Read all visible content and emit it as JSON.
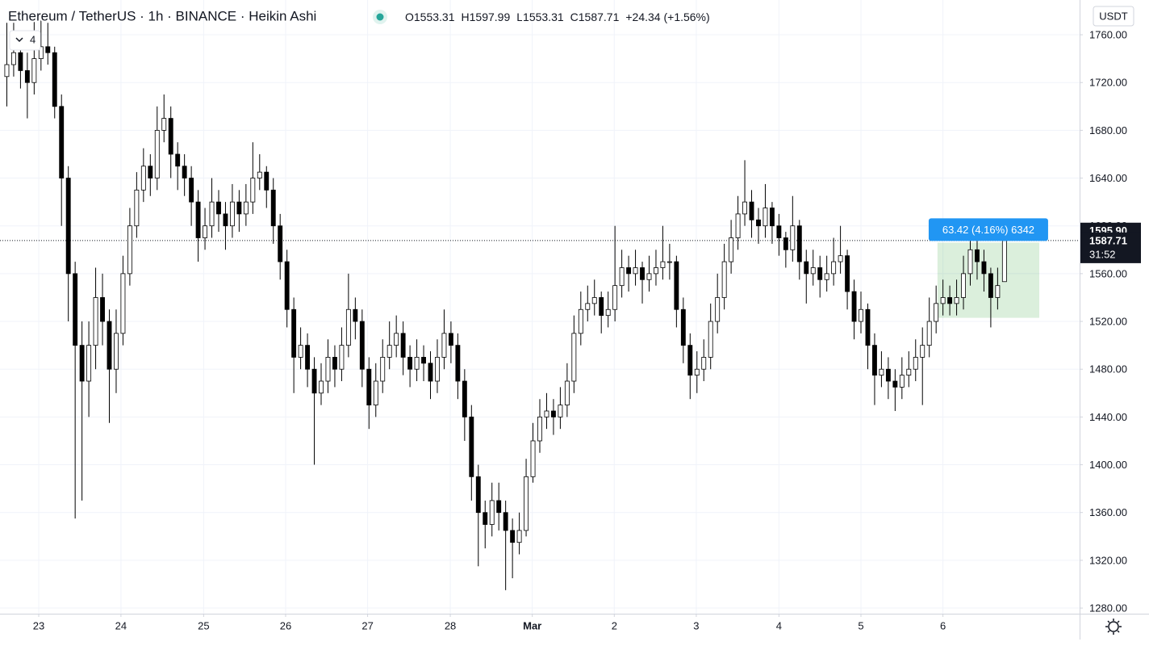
{
  "header": {
    "title": "Ethereum / TetherUS · 1h · BINANCE · Heikin Ashi",
    "ohlc_labels": [
      "O",
      "H",
      "L",
      "C"
    ],
    "change": "+24.34 (+1.56%)",
    "indicators": "4",
    "currency": "USDT"
  },
  "chart_data": {
    "type": "candlestick",
    "xlim": [
      -1,
      157
    ],
    "xticks": [
      {
        "value": 4.67,
        "label": "23"
      },
      {
        "value": 16.7,
        "label": "24"
      },
      {
        "value": 28.8,
        "label": "25"
      },
      {
        "value": 40.8,
        "label": "26"
      },
      {
        "value": 52.8,
        "label": "27"
      },
      {
        "value": 64.9,
        "label": "28"
      },
      {
        "value": 76.9,
        "label": "Mar"
      },
      {
        "value": 88.9,
        "label": "2"
      },
      {
        "value": 100.9,
        "label": "3"
      },
      {
        "value": 113,
        "label": "4"
      },
      {
        "value": 125,
        "label": "5"
      },
      {
        "value": 137,
        "label": "6"
      }
    ],
    "ylim": [
      1275.3,
      1789.1
    ],
    "yticks": [
      {
        "value": 1280,
        "label": "1280.00"
      },
      {
        "value": 1320,
        "label": "1320.00"
      },
      {
        "value": 1360,
        "label": "1360.00"
      },
      {
        "value": 1400,
        "label": "1400.00"
      },
      {
        "value": 1440,
        "label": "1440.00"
      },
      {
        "value": 1480,
        "label": "1480.00"
      },
      {
        "value": 1520,
        "label": "1520.00"
      },
      {
        "value": 1560,
        "label": "1560.00"
      },
      {
        "value": 1600,
        "label": "1600.00"
      },
      {
        "value": 1640,
        "label": "1640.00"
      },
      {
        "value": 1680,
        "label": "1680.00"
      },
      {
        "value": 1720,
        "label": "1720.00"
      },
      {
        "value": 1760,
        "label": "1760.00"
      }
    ],
    "grid": true,
    "up_color": "#ffffff",
    "down_color": "#000000",
    "border_color": "#000000",
    "candles": [
      [
        1725,
        1770,
        1700,
        1735
      ],
      [
        1735,
        1770,
        1725,
        1745
      ],
      [
        1745,
        1760,
        1715,
        1730
      ],
      [
        1730,
        1745,
        1690,
        1720
      ],
      [
        1720,
        1775,
        1710,
        1740
      ],
      [
        1740,
        1775,
        1730,
        1750
      ],
      [
        1750,
        1770,
        1735,
        1745
      ],
      [
        1745,
        1750,
        1690,
        1700
      ],
      [
        1700,
        1710,
        1600,
        1640
      ],
      [
        1640,
        1650,
        1520,
        1560
      ],
      [
        1560,
        1570,
        1355,
        1500
      ],
      [
        1500,
        1520,
        1370,
        1470
      ],
      [
        1470,
        1520,
        1440,
        1500
      ],
      [
        1500,
        1565,
        1480,
        1540
      ],
      [
        1540,
        1560,
        1500,
        1520
      ],
      [
        1520,
        1530,
        1435,
        1480
      ],
      [
        1480,
        1530,
        1460,
        1510
      ],
      [
        1510,
        1575,
        1500,
        1560
      ],
      [
        1560,
        1615,
        1550,
        1600
      ],
      [
        1600,
        1645,
        1590,
        1630
      ],
      [
        1630,
        1665,
        1620,
        1650
      ],
      [
        1650,
        1660,
        1625,
        1640
      ],
      [
        1640,
        1700,
        1630,
        1680
      ],
      [
        1680,
        1710,
        1670,
        1690
      ],
      [
        1690,
        1700,
        1640,
        1660
      ],
      [
        1660,
        1670,
        1630,
        1650
      ],
      [
        1650,
        1660,
        1625,
        1640
      ],
      [
        1640,
        1650,
        1600,
        1620
      ],
      [
        1620,
        1630,
        1570,
        1590
      ],
      [
        1590,
        1615,
        1580,
        1600
      ],
      [
        1600,
        1640,
        1590,
        1620
      ],
      [
        1620,
        1630,
        1595,
        1610
      ],
      [
        1610,
        1620,
        1580,
        1600
      ],
      [
        1600,
        1635,
        1590,
        1620
      ],
      [
        1620,
        1630,
        1595,
        1610
      ],
      [
        1610,
        1635,
        1600,
        1620
      ],
      [
        1620,
        1670,
        1610,
        1640
      ],
      [
        1640,
        1660,
        1630,
        1645
      ],
      [
        1645,
        1650,
        1615,
        1630
      ],
      [
        1630,
        1640,
        1585,
        1600
      ],
      [
        1600,
        1610,
        1555,
        1570
      ],
      [
        1570,
        1580,
        1515,
        1530
      ],
      [
        1530,
        1540,
        1460,
        1490
      ],
      [
        1490,
        1515,
        1480,
        1500
      ],
      [
        1500,
        1510,
        1465,
        1480
      ],
      [
        1480,
        1490,
        1400,
        1460
      ],
      [
        1460,
        1485,
        1450,
        1470
      ],
      [
        1470,
        1505,
        1460,
        1490
      ],
      [
        1490,
        1500,
        1465,
        1480
      ],
      [
        1480,
        1515,
        1470,
        1500
      ],
      [
        1500,
        1560,
        1490,
        1530
      ],
      [
        1530,
        1540,
        1505,
        1520
      ],
      [
        1520,
        1530,
        1465,
        1480
      ],
      [
        1480,
        1490,
        1430,
        1450
      ],
      [
        1450,
        1485,
        1440,
        1470
      ],
      [
        1470,
        1505,
        1460,
        1490
      ],
      [
        1490,
        1520,
        1480,
        1500
      ],
      [
        1500,
        1525,
        1490,
        1510
      ],
      [
        1510,
        1520,
        1475,
        1490
      ],
      [
        1490,
        1500,
        1465,
        1480
      ],
      [
        1480,
        1505,
        1470,
        1490
      ],
      [
        1490,
        1500,
        1470,
        1485
      ],
      [
        1485,
        1495,
        1455,
        1470
      ],
      [
        1470,
        1505,
        1460,
        1490
      ],
      [
        1490,
        1530,
        1480,
        1510
      ],
      [
        1510,
        1520,
        1485,
        1500
      ],
      [
        1500,
        1510,
        1455,
        1470
      ],
      [
        1470,
        1480,
        1420,
        1440
      ],
      [
        1440,
        1450,
        1370,
        1390
      ],
      [
        1390,
        1400,
        1315,
        1360
      ],
      [
        1360,
        1370,
        1330,
        1350
      ],
      [
        1350,
        1385,
        1340,
        1370
      ],
      [
        1370,
        1385,
        1345,
        1360
      ],
      [
        1360,
        1370,
        1295,
        1345
      ],
      [
        1345,
        1355,
        1305,
        1335
      ],
      [
        1335,
        1360,
        1325,
        1345
      ],
      [
        1345,
        1405,
        1340,
        1390
      ],
      [
        1390,
        1435,
        1385,
        1420
      ],
      [
        1420,
        1455,
        1410,
        1440
      ],
      [
        1440,
        1460,
        1430,
        1445
      ],
      [
        1445,
        1455,
        1425,
        1440
      ],
      [
        1440,
        1465,
        1430,
        1450
      ],
      [
        1450,
        1485,
        1440,
        1470
      ],
      [
        1470,
        1525,
        1460,
        1510
      ],
      [
        1510,
        1545,
        1500,
        1530
      ],
      [
        1530,
        1550,
        1520,
        1535
      ],
      [
        1535,
        1555,
        1525,
        1540
      ],
      [
        1540,
        1545,
        1510,
        1525
      ],
      [
        1525,
        1545,
        1515,
        1530
      ],
      [
        1530,
        1600,
        1520,
        1550
      ],
      [
        1550,
        1580,
        1540,
        1565
      ],
      [
        1565,
        1575,
        1545,
        1560
      ],
      [
        1560,
        1580,
        1550,
        1565
      ],
      [
        1565,
        1570,
        1535,
        1555
      ],
      [
        1555,
        1575,
        1545,
        1560
      ],
      [
        1560,
        1580,
        1550,
        1565
      ],
      [
        1565,
        1600,
        1555,
        1570
      ],
      [
        1570,
        1585,
        1555,
        1570
      ],
      [
        1570,
        1575,
        1515,
        1530
      ],
      [
        1530,
        1540,
        1485,
        1500
      ],
      [
        1500,
        1510,
        1455,
        1475
      ],
      [
        1475,
        1495,
        1460,
        1480
      ],
      [
        1480,
        1505,
        1470,
        1490
      ],
      [
        1490,
        1535,
        1480,
        1520
      ],
      [
        1520,
        1560,
        1510,
        1540
      ],
      [
        1540,
        1585,
        1530,
        1570
      ],
      [
        1570,
        1605,
        1560,
        1590
      ],
      [
        1590,
        1625,
        1580,
        1610
      ],
      [
        1610,
        1655,
        1600,
        1620
      ],
      [
        1620,
        1630,
        1590,
        1605
      ],
      [
        1605,
        1615,
        1585,
        1600
      ],
      [
        1600,
        1635,
        1590,
        1615
      ],
      [
        1615,
        1620,
        1585,
        1600
      ],
      [
        1600,
        1610,
        1575,
        1590
      ],
      [
        1590,
        1595,
        1565,
        1580
      ],
      [
        1580,
        1625,
        1570,
        1600
      ],
      [
        1600,
        1605,
        1555,
        1570
      ],
      [
        1570,
        1580,
        1535,
        1560
      ],
      [
        1560,
        1580,
        1550,
        1565
      ],
      [
        1565,
        1575,
        1540,
        1555
      ],
      [
        1555,
        1575,
        1545,
        1560
      ],
      [
        1560,
        1590,
        1550,
        1570
      ],
      [
        1570,
        1600,
        1560,
        1575
      ],
      [
        1575,
        1580,
        1530,
        1545
      ],
      [
        1545,
        1555,
        1505,
        1520
      ],
      [
        1520,
        1545,
        1510,
        1530
      ],
      [
        1530,
        1535,
        1480,
        1500
      ],
      [
        1500,
        1510,
        1450,
        1475
      ],
      [
        1475,
        1495,
        1465,
        1480
      ],
      [
        1480,
        1490,
        1455,
        1470
      ],
      [
        1470,
        1480,
        1445,
        1465
      ],
      [
        1465,
        1490,
        1455,
        1475
      ],
      [
        1475,
        1495,
        1465,
        1480
      ],
      [
        1480,
        1505,
        1470,
        1490
      ],
      [
        1490,
        1515,
        1450,
        1500
      ],
      [
        1500,
        1540,
        1490,
        1520
      ],
      [
        1520,
        1550,
        1510,
        1535
      ],
      [
        1535,
        1555,
        1525,
        1540
      ],
      [
        1540,
        1550,
        1525,
        1535
      ],
      [
        1535,
        1555,
        1525,
        1540
      ],
      [
        1540,
        1575,
        1530,
        1560
      ],
      [
        1560,
        1595,
        1550,
        1580
      ],
      [
        1580,
        1590,
        1555,
        1570
      ],
      [
        1570,
        1580,
        1545,
        1560
      ],
      [
        1560,
        1565,
        1515,
        1540
      ],
      [
        1540,
        1565,
        1530,
        1550
      ],
      [
        1553.31,
        1597.99,
        1553.31,
        1587.71
      ]
    ],
    "current_price": {
      "value": 1587.71,
      "label": "1587.71"
    },
    "countdown": "31:52",
    "price_labels": [
      {
        "value": 1595.9,
        "label": "1595.90"
      }
    ],
    "range_tool": {
      "from": 136.2,
      "to": 151.1,
      "top": 1586,
      "bottom": 1523,
      "label": "63.42 (4.16%) 6342",
      "color": "#4caf50",
      "label_color": "#2196f3"
    }
  }
}
